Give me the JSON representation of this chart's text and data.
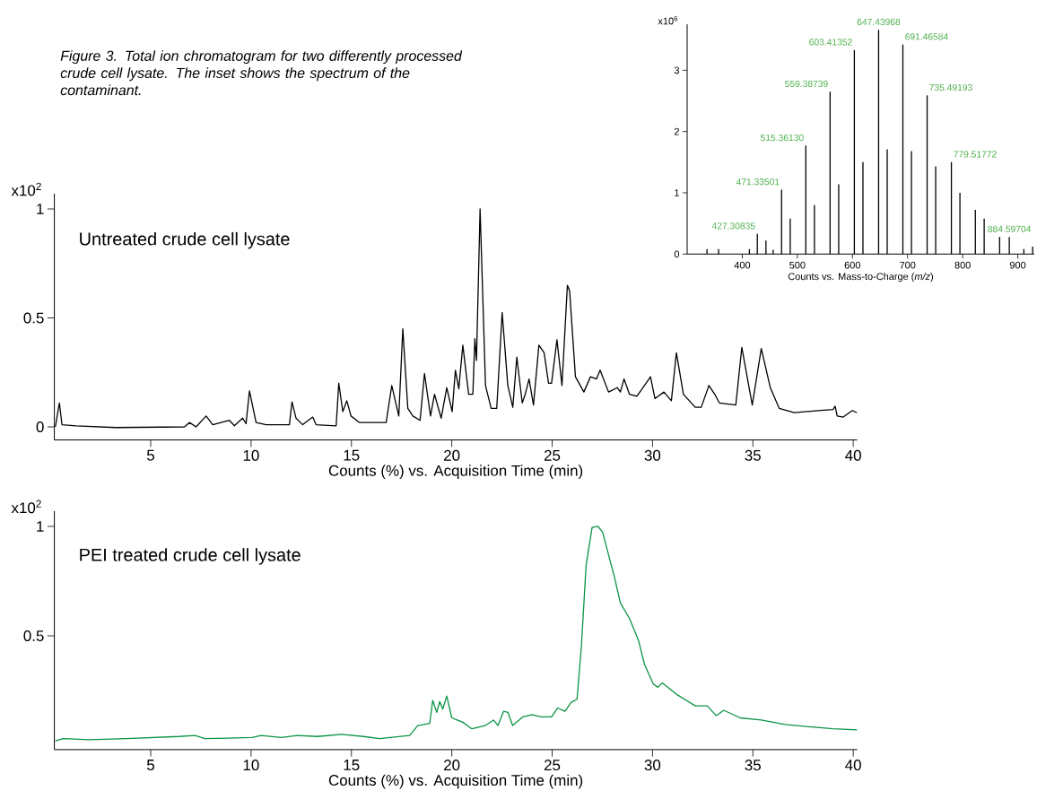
{
  "chart_data": [
    {
      "type": "bar",
      "xlabel": "Counts vs. Mass-to-Charge (*m/z*)",
      "ylabel": "x10$^{6}$",
      "color": "#000000",
      "marker": "none",
      "xlim": [
        300,
        930
      ],
      "xticks": [
        400,
        500,
        600,
        700,
        800,
        900
      ],
      "ylim": [
        0,
        3.75
      ],
      "yticks": [
        0,
        1,
        2,
        3
      ],
      "x": [
        336,
        357,
        413,
        427.30835,
        443,
        456,
        471.33501,
        487,
        515.3613,
        531,
        559.38739,
        575,
        603.41352,
        619,
        647.43968,
        663,
        691.46584,
        707,
        735.49193,
        751,
        779.51772,
        795,
        823,
        839,
        867,
        884.59704,
        911,
        927
      ],
      "values": [
        0.08,
        0.08,
        0.08,
        0.33,
        0.22,
        0.07,
        1.05,
        0.58,
        1.77,
        0.8,
        2.65,
        1.14,
        3.33,
        1.5,
        3.66,
        1.71,
        3.42,
        1.68,
        2.59,
        1.43,
        1.5,
        1.0,
        0.72,
        0.58,
        0.28,
        0.28,
        0.08,
        0.12
      ],
      "annotations": [
        {
          "text": "427.30835",
          "x": 427.30835,
          "y": 0.33
        },
        {
          "text": "471.33501",
          "x": 471.33501,
          "y": 1.05
        },
        {
          "text": "515.36130",
          "x": 515.3613,
          "y": 1.77
        },
        {
          "text": "559.38739",
          "x": 559.38739,
          "y": 2.65
        },
        {
          "text": "603.41352",
          "x": 603.41352,
          "y": 3.33
        },
        {
          "text": "647.43968",
          "x": 647.43968,
          "y": 3.66
        },
        {
          "text": "691.46584",
          "x": 691.46584,
          "y": 3.42
        },
        {
          "text": "735.49193",
          "x": 735.49193,
          "y": 2.59
        },
        {
          "text": "779.51772",
          "x": 779.51772,
          "y": 1.5
        },
        {
          "text": "884.59704",
          "x": 884.59704,
          "y": 0.28
        }
      ]
    },
    {
      "type": "line",
      "title": "Figure 3. Total ion chromatogram for two differently processed crude cell lysate. The inset shows the spectrum of the contaminant.",
      "xlabel": "Counts (%) vs. Acquisition Time (min)",
      "ylabel": "x10$^{2}$",
      "color": "#000000",
      "marker": "none",
      "xlim": [
        0.2,
        40.2
      ],
      "xticks": [
        5,
        10,
        15,
        20,
        25,
        30,
        35,
        40
      ],
      "ylim": [
        -0.06,
        1.07
      ],
      "yticks": [
        0,
        0.5,
        1
      ],
      "x": [
        0.25,
        0.45,
        0.58,
        1.28,
        3.27,
        6.68,
        6.93,
        7.26,
        7.76,
        8.09,
        8.92,
        9.17,
        9.58,
        9.75,
        9.92,
        10.25,
        10.75,
        11.91,
        12.04,
        12.24,
        12.57,
        13.07,
        13.24,
        14.24,
        14.37,
        14.57,
        14.77,
        14.98,
        15.4,
        16.4,
        16.73,
        17.01,
        17.36,
        17.56,
        17.81,
        18.06,
        18.42,
        18.64,
        18.94,
        19.14,
        19.47,
        19.75,
        20.02,
        20.18,
        20.35,
        20.55,
        20.84,
        21.05,
        21.15,
        21.23,
        21.41,
        21.68,
        21.96,
        22.24,
        22.51,
        22.79,
        23.04,
        23.24,
        23.51,
        23.66,
        23.85,
        24.07,
        24.34,
        24.6,
        24.82,
        24.97,
        25.24,
        25.49,
        25.76,
        25.87,
        26.16,
        26.58,
        26.91,
        27.21,
        27.39,
        27.81,
        28.25,
        28.4,
        28.58,
        28.85,
        29.22,
        29.6,
        29.9,
        30.12,
        30.57,
        30.94,
        31.19,
        31.54,
        32.13,
        32.43,
        32.81,
        33.1,
        33.33,
        34.15,
        34.45,
        34.97,
        35.42,
        35.87,
        36.31,
        37.06,
        38.25,
        39.0,
        39.1,
        39.2,
        39.5,
        39.96,
        40.18
      ],
      "values": [
        0,
        0.11,
        0.01,
        0.005,
        -0.003,
        0,
        0.02,
        0,
        0.05,
        0.01,
        0.03,
        0.005,
        0.04,
        0.015,
        0.165,
        0.02,
        0.01,
        0.01,
        0.115,
        0.04,
        0.01,
        0.045,
        0.01,
        0.005,
        0.2,
        0.07,
        0.12,
        0.05,
        0.02,
        0.02,
        0.02,
        0.19,
        0.05,
        0.45,
        0.085,
        0.05,
        0.03,
        0.245,
        0.05,
        0.15,
        0.04,
        0.18,
        0.07,
        0.26,
        0.175,
        0.375,
        0.15,
        0.15,
        0.405,
        0.305,
        1.0,
        0.19,
        0.085,
        0.085,
        0.525,
        0.19,
        0.09,
        0.32,
        0.11,
        0.15,
        0.22,
        0.1,
        0.375,
        0.34,
        0.2,
        0.2,
        0.4,
        0.19,
        0.65,
        0.625,
        0.23,
        0.16,
        0.23,
        0.22,
        0.26,
        0.16,
        0.18,
        0.16,
        0.22,
        0.15,
        0.14,
        0.19,
        0.23,
        0.13,
        0.16,
        0.12,
        0.34,
        0.15,
        0.09,
        0.09,
        0.19,
        0.15,
        0.11,
        0.1,
        0.365,
        0.1,
        0.36,
        0.18,
        0.085,
        0.065,
        0.075,
        0.08,
        0.095,
        0.05,
        0.045,
        0.075,
        0.065
      ],
      "annotations": [
        "Untreated crude cell lysate"
      ]
    },
    {
      "type": "line",
      "xlabel": "Counts (%) vs. Acquisition Time (min)",
      "ylabel": "x10$^{2}$",
      "color": "#0a9444",
      "marker": "none",
      "xlim": [
        0.2,
        40.2
      ],
      "xticks": [
        5,
        10,
        15,
        20,
        25,
        30,
        35,
        40
      ],
      "ylim": [
        -0.02,
        1.07
      ],
      "yticks": [
        0.5,
        1
      ],
      "x": [
        0.25,
        0.64,
        1.95,
        3.77,
        6.4,
        7.2,
        7.7,
        10.05,
        10.5,
        11.5,
        12.3,
        13.3,
        14.5,
        15.6,
        16.4,
        17.9,
        18.3,
        18.9,
        19.05,
        19.25,
        19.4,
        19.55,
        19.75,
        20.0,
        20.55,
        21.0,
        21.67,
        22.08,
        22.3,
        22.58,
        22.8,
        23.03,
        23.55,
        24.0,
        24.45,
        24.97,
        25.27,
        25.64,
        25.94,
        26.24,
        26.46,
        26.69,
        26.99,
        27.28,
        27.51,
        27.81,
        28.1,
        28.4,
        28.85,
        29.3,
        29.6,
        30.04,
        30.27,
        30.49,
        31.24,
        32.13,
        32.73,
        33.18,
        33.55,
        34.37,
        35.42,
        36.6,
        37.8,
        39.0,
        40.19
      ],
      "values": [
        0.02,
        0.03,
        0.025,
        0.03,
        0.04,
        0.045,
        0.03,
        0.035,
        0.045,
        0.035,
        0.045,
        0.04,
        0.05,
        0.04,
        0.03,
        0.045,
        0.09,
        0.1,
        0.205,
        0.15,
        0.2,
        0.165,
        0.225,
        0.125,
        0.105,
        0.075,
        0.09,
        0.115,
        0.09,
        0.155,
        0.15,
        0.09,
        0.13,
        0.14,
        0.13,
        0.13,
        0.17,
        0.155,
        0.195,
        0.21,
        0.455,
        0.82,
        0.995,
        1.0,
        0.975,
        0.87,
        0.77,
        0.65,
        0.58,
        0.48,
        0.37,
        0.28,
        0.265,
        0.285,
        0.23,
        0.18,
        0.18,
        0.135,
        0.16,
        0.125,
        0.115,
        0.095,
        0.085,
        0.075,
        0.07
      ],
      "annotations": [
        "PEI treated crude cell lysate"
      ]
    }
  ]
}
